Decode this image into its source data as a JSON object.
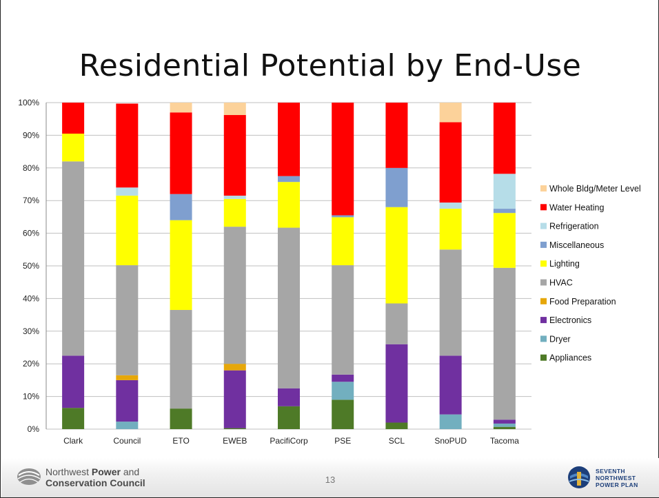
{
  "slide": {
    "title": "Residential Potential by End-Use",
    "page_number": "13",
    "footer_org_line1": "Northwest",
    "footer_org_line1_bold": "Power",
    "footer_org_line1_end": "and",
    "footer_org_line2": "Conservation Council",
    "logo_text_line1": "SEVENTH",
    "logo_text_line2": "NORTHWEST",
    "logo_text_line3": "POWER PLAN"
  },
  "chart_data": {
    "type": "bar",
    "stacked": true,
    "percent": true,
    "categories": [
      "Clark",
      "Council",
      "ETO",
      "EWEB",
      "PacifiCorp",
      "PSE",
      "SCL",
      "SnoPUD",
      "Tacoma"
    ],
    "yticks": [
      "0%",
      "10%",
      "20%",
      "30%",
      "40%",
      "50%",
      "60%",
      "70%",
      "80%",
      "90%",
      "100%"
    ],
    "ylim": [
      0,
      100
    ],
    "grid": true,
    "legend_position": "right",
    "series": [
      {
        "name": "Appliances",
        "color": "#4e7a27",
        "values": [
          6.5,
          0,
          6.3,
          0.3,
          7.0,
          9.0,
          2.0,
          0,
          0.7
        ]
      },
      {
        "name": "Dryer",
        "color": "#72afbf",
        "values": [
          0,
          2.3,
          0,
          0,
          0,
          5.5,
          0,
          4.5,
          1.0
        ]
      },
      {
        "name": "Electronics",
        "color": "#7030a0",
        "values": [
          16.0,
          12.7,
          0,
          17.7,
          5.5,
          2.2,
          24.0,
          18.0,
          1.2
        ]
      },
      {
        "name": "Food Preparation",
        "color": "#e6a70a",
        "values": [
          0,
          1.5,
          0,
          2.0,
          0,
          0,
          0,
          0,
          0
        ]
      },
      {
        "name": "HVAC",
        "color": "#a6a6a6",
        "values": [
          59.5,
          33.7,
          30.2,
          42.0,
          49.2,
          33.5,
          12.5,
          32.5,
          46.5
        ]
      },
      {
        "name": "Lighting",
        "color": "#ffff00",
        "values": [
          8.5,
          21.3,
          27.5,
          8.5,
          14.0,
          14.7,
          29.5,
          12.5,
          16.8
        ]
      },
      {
        "name": "Miscellaneous",
        "color": "#7f9fcf",
        "values": [
          0,
          0,
          8.0,
          0,
          1.8,
          0.6,
          12.0,
          0,
          1.3
        ]
      },
      {
        "name": "Refrigeration",
        "color": "#b6dde8",
        "values": [
          0,
          2.5,
          0,
          1.0,
          0,
          0,
          0,
          1.9,
          10.7
        ]
      },
      {
        "name": "Water Heating",
        "color": "#ff0000",
        "values": [
          9.5,
          25.7,
          25.0,
          24.7,
          22.5,
          34.5,
          20.0,
          24.6,
          21.8
        ]
      },
      {
        "name": "Whole Bldg/Meter Level",
        "color": "#fcd29a",
        "values": [
          0,
          0,
          3.0,
          3.8,
          0,
          0,
          0,
          6.0,
          0
        ]
      }
    ]
  }
}
